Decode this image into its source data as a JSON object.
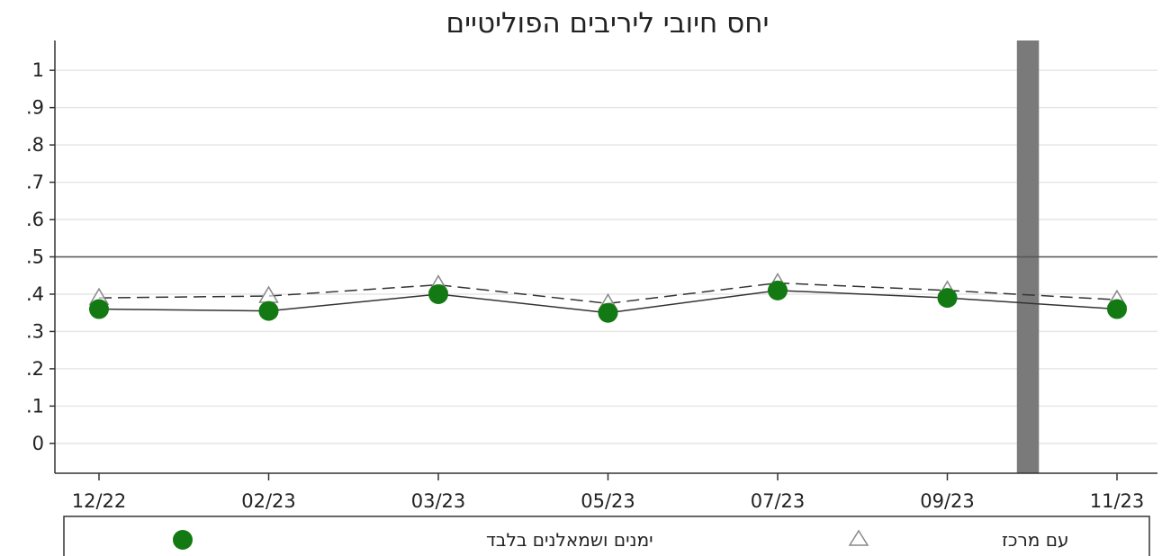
{
  "chart_data": {
    "type": "line",
    "title": "יחס חיובי ליריבים הפוליטיים",
    "categories": [
      "12/22",
      "02/23",
      "03/23",
      "05/23",
      "07/23",
      "09/23",
      "11/23"
    ],
    "ylim": [
      -0.08,
      1.08
    ],
    "yticks": [
      {
        "value": 1,
        "label": "1"
      },
      {
        "value": 0.9,
        "label": ".9"
      },
      {
        "value": 0.8,
        "label": ".8"
      },
      {
        "value": 0.7,
        "label": ".7"
      },
      {
        "value": 0.6,
        "label": ".6"
      },
      {
        "value": 0.5,
        "label": ".5"
      },
      {
        "value": 0.4,
        "label": ".4"
      },
      {
        "value": 0.3,
        "label": ".3"
      },
      {
        "value": 0.2,
        "label": ".2"
      },
      {
        "value": 0.1,
        "label": ".1"
      },
      {
        "value": 0,
        "label": "0"
      }
    ],
    "reference_line": 0.5,
    "vertical_band_between": [
      "09/23",
      "11/23"
    ],
    "grid": true,
    "legend_position": "bottom",
    "series": [
      {
        "name": "עם מרכז",
        "marker": "triangle-open",
        "line_style": "dashed",
        "color": "#888888",
        "values": [
          0.39,
          0.395,
          0.425,
          0.375,
          0.43,
          0.41,
          0.385
        ]
      },
      {
        "name": "ימנים ושמאלנים בלבד",
        "marker": "circle-filled",
        "line_style": "solid",
        "color": "#137a13",
        "values": [
          0.36,
          0.355,
          0.4,
          0.35,
          0.41,
          0.39,
          0.36
        ]
      }
    ]
  }
}
